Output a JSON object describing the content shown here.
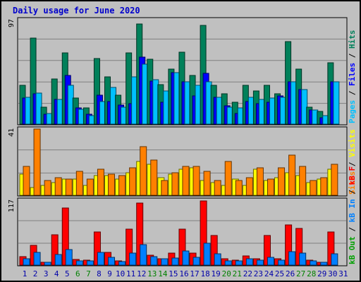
{
  "title": "Daily usage for June 2020",
  "chart_data": [
    {
      "type": "bar",
      "title": "Daily usage for June 2020",
      "ymax_label": "97",
      "ylim": [
        0,
        97
      ],
      "legend": [
        {
          "label": "Hits",
          "color": "#00805a"
        },
        {
          "label": "Files",
          "color": "#0000ff"
        },
        {
          "label": "Pages",
          "color": "#00c0ff"
        }
      ],
      "legend_separator": "/",
      "categories": [
        "1",
        "2",
        "3",
        "4",
        "5",
        "6",
        "7",
        "8",
        "9",
        "10",
        "11",
        "12",
        "13",
        "14",
        "15",
        "16",
        "17",
        "18",
        "19",
        "20",
        "21",
        "22",
        "23",
        "24",
        "25",
        "26",
        "27",
        "28",
        "29",
        "30",
        "31"
      ],
      "series": [
        {
          "name": "Hits",
          "color": "#00805a",
          "values": [
            36,
            80,
            16,
            42,
            66,
            24,
            15,
            61,
            44,
            27,
            66,
            93,
            60,
            37,
            51,
            67,
            45,
            92,
            36,
            28,
            20,
            36,
            31,
            36,
            28,
            77,
            51,
            16,
            12,
            57,
            0
          ]
        },
        {
          "name": "Files",
          "color": "#0000ff",
          "values": [
            24,
            28,
            9,
            23,
            45,
            15,
            9,
            27,
            21,
            18,
            19,
            62,
            40,
            20,
            48,
            39,
            26,
            47,
            25,
            17,
            10,
            21,
            19,
            20,
            26,
            39,
            32,
            13,
            6,
            39,
            0
          ]
        },
        {
          "name": "Pages",
          "color": "#00c0ff",
          "values": [
            25,
            29,
            10,
            23,
            36,
            14,
            8,
            21,
            34,
            16,
            44,
            56,
            41,
            31,
            48,
            39,
            36,
            39,
            25,
            16,
            15,
            25,
            23,
            24,
            25,
            39,
            32,
            13,
            8,
            39,
            0
          ]
        }
      ]
    },
    {
      "type": "bar",
      "ymax_label": "41",
      "ylim": [
        0,
        41
      ],
      "legend": [
        {
          "label": "Visits",
          "color": "#ffff00"
        },
        {
          "label": "Sites",
          "color": "#ff8000"
        }
      ],
      "legend_separator": "/",
      "categories": [
        "1",
        "2",
        "3",
        "4",
        "5",
        "6",
        "7",
        "8",
        "9",
        "10",
        "11",
        "12",
        "13",
        "14",
        "15",
        "16",
        "17",
        "18",
        "19",
        "20",
        "21",
        "22",
        "23",
        "24",
        "25",
        "26",
        "27",
        "28",
        "29",
        "30",
        "31"
      ],
      "series": [
        {
          "name": "Visits",
          "color": "#ffff00",
          "values": [
            13,
            5,
            6,
            8,
            10,
            10,
            6,
            12,
            12,
            10,
            14,
            21,
            19,
            11,
            13,
            16,
            17,
            9,
            8,
            6,
            10,
            6,
            16,
            9,
            11,
            14,
            12,
            8,
            10,
            16,
            0
          ]
        },
        {
          "name": "Sites",
          "color": "#ff8000",
          "values": [
            18,
            41,
            9,
            11,
            10,
            15,
            10,
            16,
            13,
            12,
            17,
            30,
            22,
            9,
            14,
            18,
            18,
            15,
            9,
            21,
            9,
            11,
            17,
            10,
            17,
            25,
            18,
            9,
            11,
            19,
            0
          ]
        }
      ]
    },
    {
      "type": "bar",
      "ymax_label": "117",
      "ylim": [
        0,
        117
      ],
      "legend": [
        {
          "label": "kB F",
          "color": "#ff0000"
        },
        {
          "label": "kB In",
          "color": "#0080ff"
        },
        {
          "label": "kB Out",
          "color": "#00a000"
        }
      ],
      "legend_separator": "/",
      "categories": [
        "1",
        "2",
        "3",
        "4",
        "5",
        "6",
        "7",
        "8",
        "9",
        "10",
        "11",
        "12",
        "13",
        "14",
        "15",
        "16",
        "17",
        "18",
        "19",
        "20",
        "21",
        "22",
        "23",
        "24",
        "25",
        "26",
        "27",
        "28",
        "29",
        "30",
        "31"
      ],
      "series": [
        {
          "name": "kB F",
          "color": "#ff0000",
          "values": [
            15,
            36,
            5,
            55,
            103,
            10,
            9,
            60,
            23,
            7,
            65,
            112,
            18,
            12,
            21,
            65,
            22,
            116,
            54,
            11,
            9,
            16,
            12,
            54,
            11,
            73,
            66,
            9,
            5,
            60,
            0
          ]
        },
        {
          "name": "kB In",
          "color": "#0080ff",
          "values": [
            12,
            23,
            5,
            19,
            28,
            8,
            7,
            23,
            14,
            6,
            21,
            37,
            15,
            12,
            13,
            26,
            14,
            39,
            20,
            7,
            8,
            12,
            9,
            14,
            9,
            24,
            22,
            7,
            5,
            20,
            0
          ]
        }
      ],
      "weekend_days": [
        "6",
        "7",
        "13",
        "14",
        "20",
        "21",
        "27",
        "28"
      ],
      "weekday_label_color": "#0000aa",
      "weekend_label_color": "#008000"
    }
  ]
}
